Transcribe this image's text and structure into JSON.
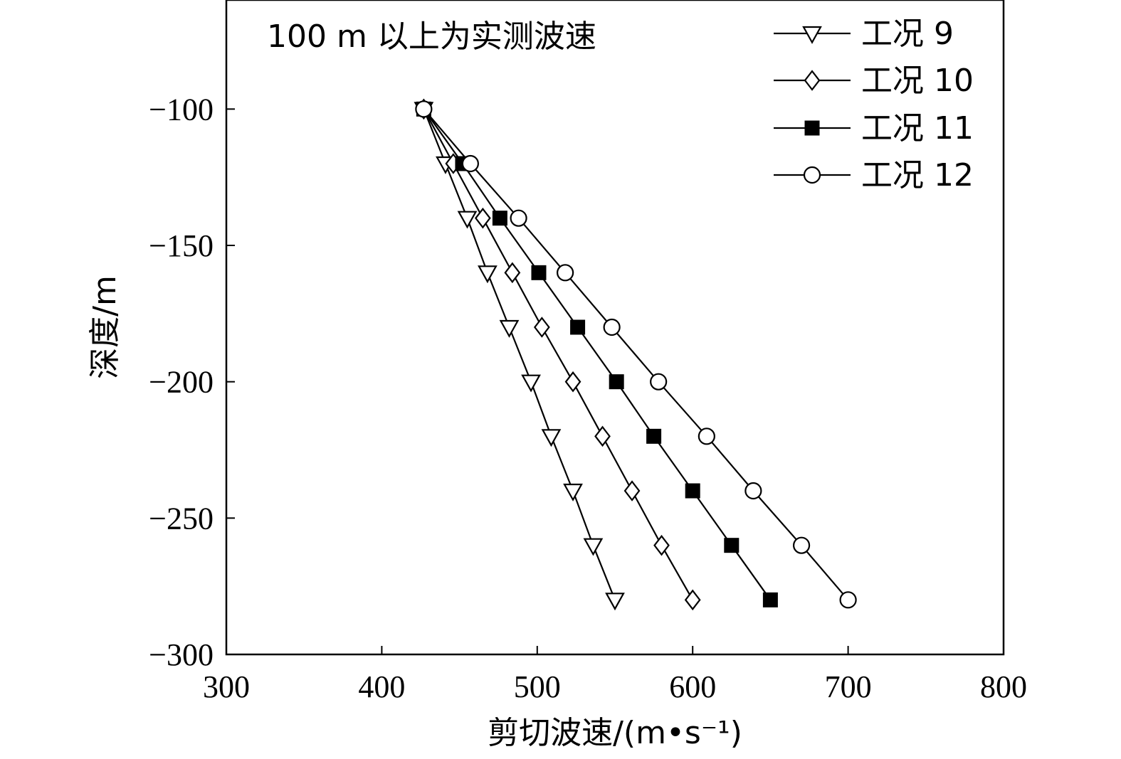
{
  "chart_data": {
    "type": "line",
    "annotation": "100 m 以上为实测波速",
    "xlabel": "剪切波速/(m•s⁻¹)",
    "ylabel": "深度/m",
    "xlim": [
      300,
      800
    ],
    "ylim": [
      -300,
      -60
    ],
    "xticks": [
      "300",
      "400",
      "500",
      "600",
      "700",
      "800"
    ],
    "yticks": [
      "−100",
      "−150",
      "−200",
      "−250",
      "−300"
    ],
    "grid": false,
    "legend_position": "top-right",
    "depths": [
      -100,
      -120,
      -140,
      -160,
      -180,
      -200,
      -220,
      -240,
      -260,
      -280
    ],
    "series": [
      {
        "name": "工况 9",
        "marker": "triangle-down-open",
        "values": [
          427,
          441,
          455,
          468,
          482,
          496,
          509,
          523,
          536,
          550
        ]
      },
      {
        "name": "工况 10",
        "marker": "diamond-open",
        "values": [
          427,
          446,
          465,
          484,
          503,
          523,
          542,
          561,
          580,
          600
        ]
      },
      {
        "name": "工况 11",
        "marker": "square-filled",
        "values": [
          427,
          452,
          476,
          501,
          526,
          551,
          575,
          600,
          625,
          650
        ]
      },
      {
        "name": "工况 12",
        "marker": "circle-open",
        "values": [
          427,
          457,
          488,
          518,
          548,
          578,
          609,
          639,
          670,
          700
        ]
      }
    ]
  }
}
